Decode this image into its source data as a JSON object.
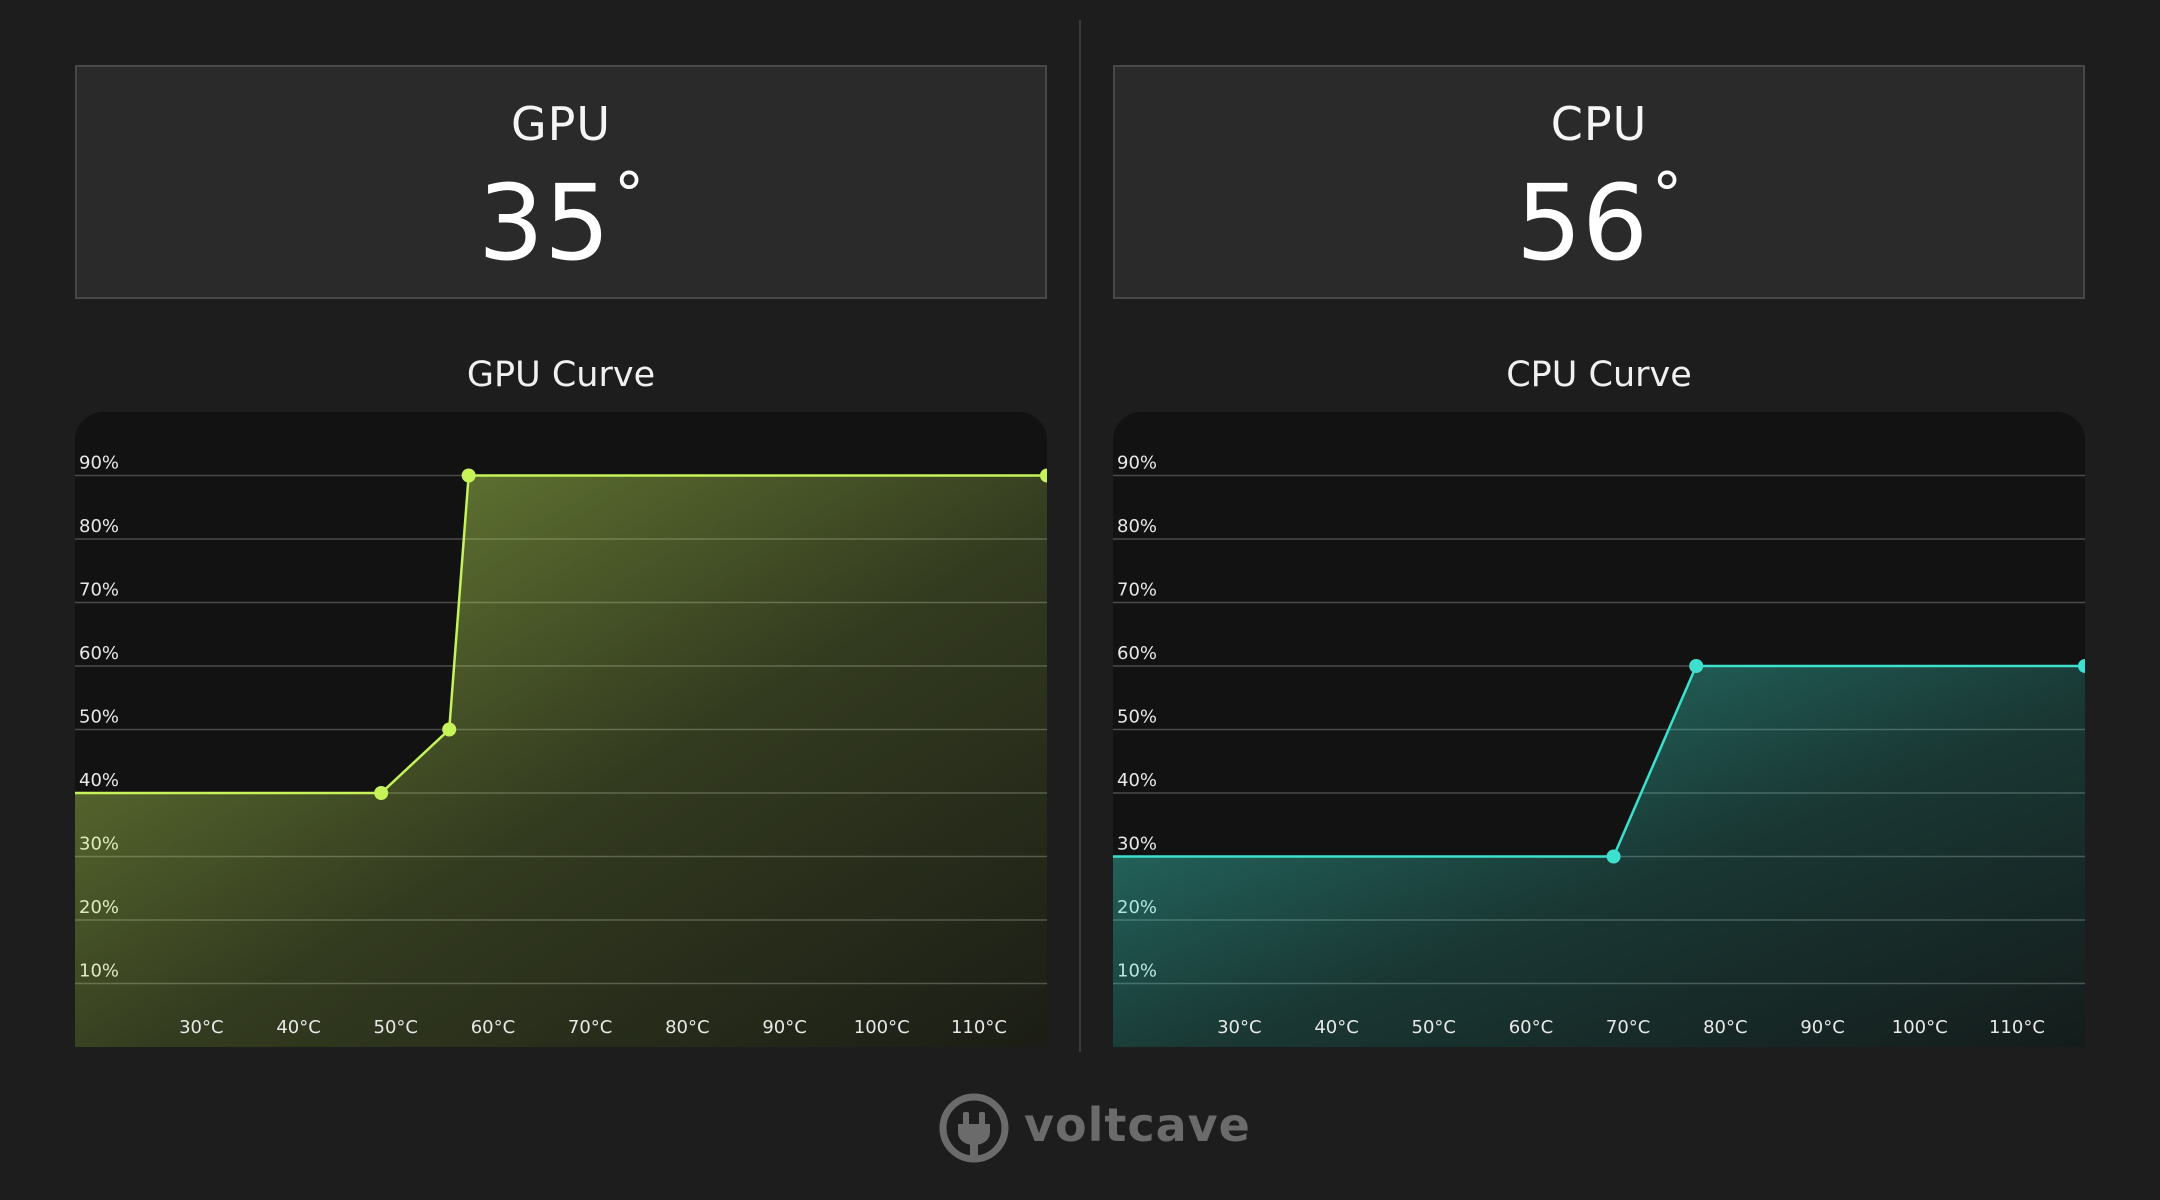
{
  "gpu": {
    "label": "GPU",
    "temperature": "35",
    "degree_symbol": "°",
    "curve_title": "GPU Curve",
    "accent": "#c6f25a"
  },
  "cpu": {
    "label": "CPU",
    "temperature": "56",
    "degree_symbol": "°",
    "curve_title": "CPU Curve",
    "accent": "#3ce0cc"
  },
  "brand": {
    "name": "voltcave",
    "icon": "plug-icon"
  },
  "chart_data": [
    {
      "type": "area",
      "title": "GPU Curve",
      "xlabel": "",
      "ylabel": "",
      "x_tick_labels": [
        "30°C",
        "40°C",
        "50°C",
        "60°C",
        "70°C",
        "80°C",
        "90°C",
        "100°C",
        "110°C"
      ],
      "y_tick_labels": [
        "10%",
        "20%",
        "30%",
        "40%",
        "50%",
        "60%",
        "70%",
        "80%",
        "90%"
      ],
      "xlim": [
        17,
        117
      ],
      "ylim": [
        0,
        100
      ],
      "grid": true,
      "points": [
        [
          17,
          40
        ],
        [
          48.5,
          40
        ],
        [
          55.5,
          50
        ],
        [
          57.5,
          90
        ],
        [
          117,
          90
        ]
      ],
      "handles": [
        [
          48.5,
          40
        ],
        [
          55.5,
          50
        ],
        [
          57.5,
          90
        ],
        [
          117,
          90
        ]
      ],
      "color": "#c6f25a"
    },
    {
      "type": "area",
      "title": "CPU Curve",
      "xlabel": "",
      "ylabel": "",
      "x_tick_labels": [
        "30°C",
        "40°C",
        "50°C",
        "60°C",
        "70°C",
        "80°C",
        "90°C",
        "100°C",
        "110°C"
      ],
      "y_tick_labels": [
        "10%",
        "20%",
        "30%",
        "40%",
        "50%",
        "60%",
        "70%",
        "80%",
        "90%"
      ],
      "xlim": [
        17,
        117
      ],
      "ylim": [
        0,
        100
      ],
      "grid": true,
      "points": [
        [
          17,
          30
        ],
        [
          68.5,
          30
        ],
        [
          77,
          60
        ],
        [
          117,
          60
        ]
      ],
      "handles": [
        [
          68.5,
          30
        ],
        [
          77,
          60
        ],
        [
          117,
          60
        ]
      ],
      "color": "#3ce0cc"
    }
  ]
}
